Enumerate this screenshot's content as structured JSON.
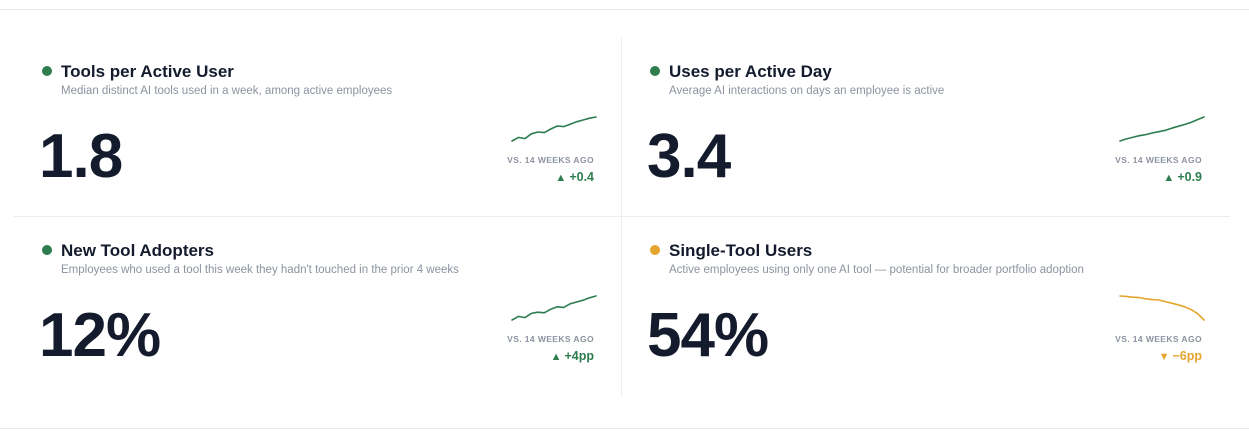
{
  "colors": {
    "positive": "#2e7d4f",
    "warning": "#e6a52e",
    "text_primary": "#141b2d",
    "text_muted": "#8c93a0"
  },
  "cards": [
    {
      "title": "Tools per Active User",
      "subtitle": "Median distinct AI tools used in a week, among active employees",
      "value": "1.8",
      "comparison_label": "VS. 14 WEEKS AGO",
      "delta": "+0.4",
      "delta_direction": "up",
      "status": "positive",
      "trend": [
        1.4,
        1.46,
        1.44,
        1.52,
        1.55,
        1.54,
        1.6,
        1.65,
        1.64,
        1.68,
        1.72,
        1.75,
        1.78,
        1.8
      ]
    },
    {
      "title": "Uses per Active Day",
      "subtitle": "Average AI interactions on days an employee is active",
      "value": "3.4",
      "comparison_label": "VS. 14 WEEKS AGO",
      "delta": "+0.9",
      "delta_direction": "up",
      "status": "positive",
      "trend": [
        2.5,
        2.58,
        2.64,
        2.7,
        2.74,
        2.8,
        2.85,
        2.9,
        2.98,
        3.05,
        3.12,
        3.2,
        3.3,
        3.4
      ]
    },
    {
      "title": "New Tool Adopters",
      "subtitle": "Employees who used a tool this week they hadn't touched in the prior 4 weeks",
      "value": "12%",
      "comparison_label": "VS. 14 WEEKS AGO",
      "delta": "+4pp",
      "delta_direction": "up",
      "status": "positive",
      "trend": [
        8.0,
        8.6,
        8.4,
        9.1,
        9.3,
        9.2,
        9.8,
        10.2,
        10.1,
        10.7,
        11.0,
        11.3,
        11.7,
        12.0
      ]
    },
    {
      "title": "Single-Tool Users",
      "subtitle": "Active employees using only one AI tool — potential for broader portfolio adoption",
      "value": "54%",
      "comparison_label": "VS. 14 WEEKS AGO",
      "delta": "−6pp",
      "delta_direction": "down",
      "status": "warning",
      "trend": [
        60.0,
        59.9,
        59.7,
        59.6,
        59.3,
        59.1,
        59.0,
        58.6,
        58.2,
        57.8,
        57.3,
        56.6,
        55.6,
        54.0
      ]
    }
  ],
  "arrows": {
    "up": "▲",
    "down": "▼"
  }
}
